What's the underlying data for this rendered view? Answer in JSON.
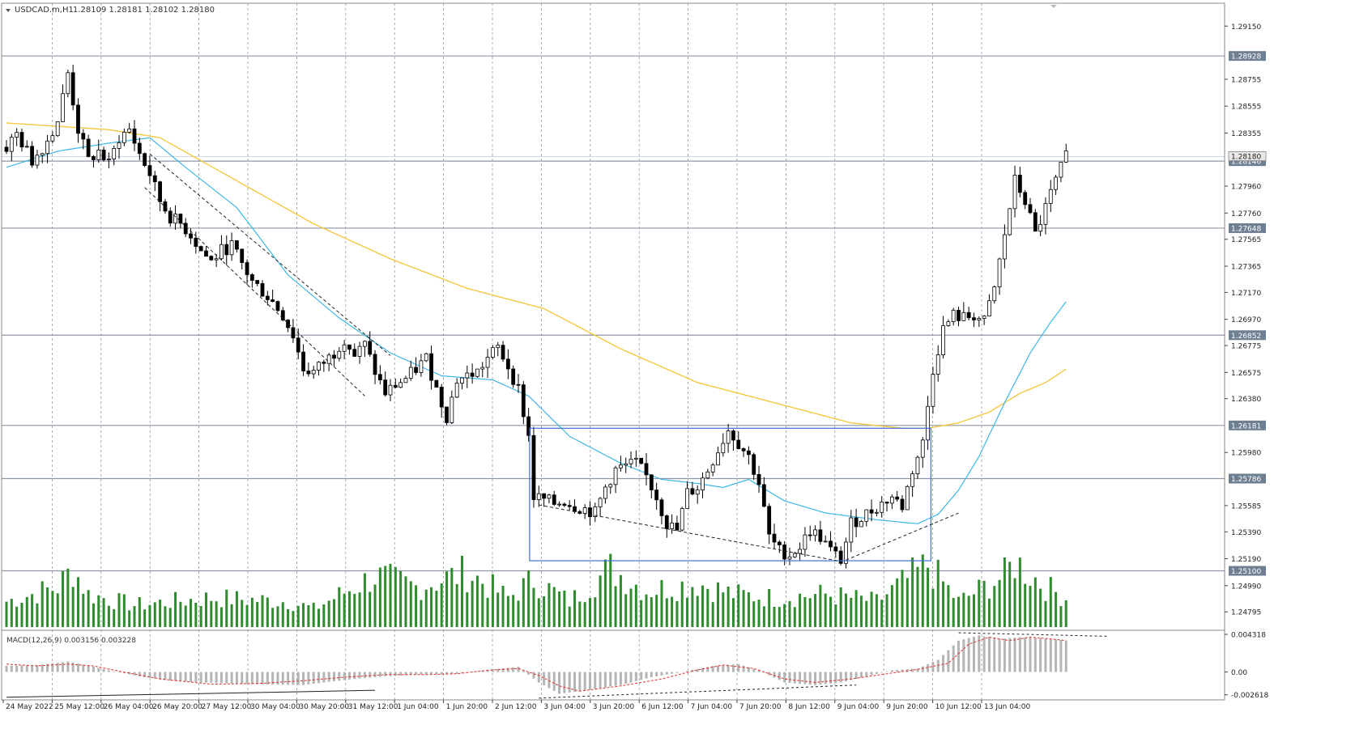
{
  "header": {
    "symbol": "USDCAD.m,H1",
    "ohlc": "1.28109 1.28181 1.28102 1.28180"
  },
  "colors": {
    "candle": "#000000",
    "grid": "#999999",
    "level": "#8c97a6",
    "ma_fast": "#3fb7e6",
    "ma_slow": "#f5c842",
    "volume": "#2e8b2e",
    "macd_hist": "#b5b5b5",
    "macd_signal": "#e03030",
    "range_box": "#3d6fd8",
    "price_label_bg": "#6f7f92"
  },
  "chart_data": {
    "type": "candlestick",
    "timeframe": "H1",
    "x_tick_labels": [
      "24 May 2022",
      "25 May 12:00",
      "26 May 04:00",
      "26 May 20:00",
      "27 May 12:00",
      "30 May 04:00",
      "30 May 20:00",
      "31 May 12:00",
      "1 Jun 04:00",
      "1 Jun 20:00",
      "2 Jun 12:00",
      "3 Jun 04:00",
      "3 Jun 20:00",
      "6 Jun 12:00",
      "7 Jun 04:00",
      "7 Jun 20:00",
      "8 Jun 12:00",
      "9 Jun 04:00",
      "9 Jun 20:00",
      "10 Jun 12:00",
      "13 Jun 04:00"
    ],
    "y_tick_labels": [
      "1.29150",
      "1.28755",
      "1.28555",
      "1.28355",
      "1.27960",
      "1.27760",
      "1.27565",
      "1.27365",
      "1.27170",
      "1.26970",
      "1.26775",
      "1.26575",
      "1.26380",
      "1.25980",
      "1.25585",
      "1.25390",
      "1.25190",
      "1.24990",
      "1.24795"
    ],
    "ylim": [
      1.2467,
      1.2932
    ],
    "horizontal_levels": [
      "1.28928",
      "1.28146",
      "1.27648",
      "1.26852",
      "1.26181",
      "1.25786",
      "1.25100"
    ],
    "current_price_label": "1.28180",
    "range_box": {
      "x_from": 102.2,
      "x_to": 180.6,
      "y_from": 1.25175,
      "y_to": 1.2616
    },
    "candle_keypoints": [
      [
        0,
        1.2825
      ],
      [
        2,
        1.2835
      ],
      [
        5,
        1.2815
      ],
      [
        8,
        1.283
      ],
      [
        10,
        1.2845
      ],
      [
        12,
        1.288
      ],
      [
        14,
        1.2838
      ],
      [
        16,
        1.2815
      ],
      [
        18,
        1.2822
      ],
      [
        20,
        1.2812
      ],
      [
        22,
        1.2832
      ],
      [
        24,
        1.2838
      ],
      [
        26,
        1.282
      ],
      [
        28,
        1.2805
      ],
      [
        30,
        1.2785
      ],
      [
        32,
        1.2773
      ],
      [
        34,
        1.2768
      ],
      [
        36,
        1.276
      ],
      [
        38,
        1.2748
      ],
      [
        40,
        1.274
      ],
      [
        42,
        1.2748
      ],
      [
        44,
        1.2752
      ],
      [
        46,
        1.2738
      ],
      [
        48,
        1.2725
      ],
      [
        50,
        1.2718
      ],
      [
        52,
        1.271
      ],
      [
        54,
        1.27
      ],
      [
        56,
        1.2685
      ],
      [
        58,
        1.266
      ],
      [
        60,
        1.2658
      ],
      [
        62,
        1.2665
      ],
      [
        64,
        1.2672
      ],
      [
        66,
        1.2683
      ],
      [
        68,
        1.267
      ],
      [
        70,
        1.2678
      ],
      [
        72,
        1.2658
      ],
      [
        74,
        1.2642
      ],
      [
        76,
        1.2648
      ],
      [
        78,
        1.2653
      ],
      [
        80,
        1.266
      ],
      [
        82,
        1.2668
      ],
      [
        84,
        1.2645
      ],
      [
        86,
        1.2625
      ],
      [
        88,
        1.2652
      ],
      [
        90,
        1.2655
      ],
      [
        92,
        1.2658
      ],
      [
        94,
        1.2668
      ],
      [
        96,
        1.2676
      ],
      [
        98,
        1.2662
      ],
      [
        100,
        1.2645
      ],
      [
        102,
        1.261
      ],
      [
        103,
        1.2565
      ],
      [
        105,
        1.2563
      ],
      [
        107,
        1.256
      ],
      [
        109,
        1.2562
      ],
      [
        111,
        1.2558
      ],
      [
        113,
        1.2556
      ],
      [
        115,
        1.2553
      ],
      [
        117,
        1.2572
      ],
      [
        119,
        1.2585
      ],
      [
        121,
        1.2588
      ],
      [
        123,
        1.259
      ],
      [
        125,
        1.258
      ],
      [
        127,
        1.2565
      ],
      [
        129,
        1.2545
      ],
      [
        131,
        1.254
      ],
      [
        133,
        1.2568
      ],
      [
        135,
        1.2572
      ],
      [
        137,
        1.2585
      ],
      [
        139,
        1.26
      ],
      [
        141,
        1.2615
      ],
      [
        143,
        1.2605
      ],
      [
        145,
        1.2595
      ],
      [
        147,
        1.2575
      ],
      [
        149,
        1.2535
      ],
      [
        151,
        1.2525
      ],
      [
        153,
        1.2522
      ],
      [
        155,
        1.2528
      ],
      [
        157,
        1.254
      ],
      [
        159,
        1.2535
      ],
      [
        161,
        1.2525
      ],
      [
        163,
        1.2518
      ],
      [
        165,
        1.2545
      ],
      [
        167,
        1.255
      ],
      [
        169,
        1.2555
      ],
      [
        171,
        1.256
      ],
      [
        173,
        1.2565
      ],
      [
        175,
        1.2558
      ],
      [
        177,
        1.2585
      ],
      [
        179,
        1.2605
      ],
      [
        181,
        1.266
      ],
      [
        183,
        1.269
      ],
      [
        185,
        1.27
      ],
      [
        187,
        1.2698
      ],
      [
        189,
        1.27
      ],
      [
        191,
        1.2695
      ],
      [
        193,
        1.272
      ],
      [
        195,
        1.276
      ],
      [
        197,
        1.28
      ],
      [
        199,
        1.2785
      ],
      [
        201,
        1.276
      ],
      [
        203,
        1.278
      ],
      [
        205,
        1.28
      ],
      [
        207,
        1.2818
      ]
    ],
    "volume_keypoints": [
      [
        0,
        0.35
      ],
      [
        10,
        0.55
      ],
      [
        13,
        0.8
      ],
      [
        16,
        0.45
      ],
      [
        25,
        0.3
      ],
      [
        40,
        0.4
      ],
      [
        55,
        0.35
      ],
      [
        60,
        0.25
      ],
      [
        72,
        0.7
      ],
      [
        80,
        0.55
      ],
      [
        90,
        0.75
      ],
      [
        98,
        0.4
      ],
      [
        103,
        0.65
      ],
      [
        110,
        0.35
      ],
      [
        118,
        0.8
      ],
      [
        125,
        0.5
      ],
      [
        135,
        0.6
      ],
      [
        142,
        0.45
      ],
      [
        150,
        0.4
      ],
      [
        160,
        0.45
      ],
      [
        170,
        0.35
      ],
      [
        180,
        0.85
      ],
      [
        186,
        0.35
      ],
      [
        195,
        0.7
      ],
      [
        197,
        0.9
      ],
      [
        203,
        0.55
      ],
      [
        207,
        0.4
      ]
    ],
    "ma_fast_keypoints": [
      [
        0,
        1.281
      ],
      [
        10,
        1.2822
      ],
      [
        20,
        1.2828
      ],
      [
        28,
        1.2832
      ],
      [
        35,
        1.281
      ],
      [
        45,
        1.278
      ],
      [
        55,
        1.273
      ],
      [
        65,
        1.2698
      ],
      [
        75,
        1.2672
      ],
      [
        85,
        1.2655
      ],
      [
        95,
        1.2652
      ],
      [
        102,
        1.264
      ],
      [
        110,
        1.261
      ],
      [
        120,
        1.259
      ],
      [
        128,
        1.2578
      ],
      [
        135,
        1.2575
      ],
      [
        140,
        1.2572
      ],
      [
        145,
        1.2578
      ],
      [
        152,
        1.2562
      ],
      [
        160,
        1.2553
      ],
      [
        170,
        1.2548
      ],
      [
        178,
        1.2545
      ],
      [
        182,
        1.2552
      ],
      [
        186,
        1.257
      ],
      [
        190,
        1.2595
      ],
      [
        195,
        1.2635
      ],
      [
        200,
        1.2672
      ],
      [
        204,
        1.2695
      ],
      [
        207,
        1.271
      ]
    ],
    "ma_slow_keypoints": [
      [
        0,
        1.2843
      ],
      [
        20,
        1.2838
      ],
      [
        30,
        1.2832
      ],
      [
        45,
        1.28
      ],
      [
        60,
        1.2768
      ],
      [
        75,
        1.2742
      ],
      [
        90,
        1.272
      ],
      [
        105,
        1.2705
      ],
      [
        120,
        1.2675
      ],
      [
        135,
        1.265
      ],
      [
        150,
        1.2635
      ],
      [
        165,
        1.262
      ],
      [
        175,
        1.2616
      ],
      [
        180,
        1.2616
      ],
      [
        186,
        1.262
      ],
      [
        192,
        1.2628
      ],
      [
        198,
        1.2642
      ],
      [
        203,
        1.265
      ],
      [
        207,
        1.266
      ]
    ],
    "macd": {
      "label": "MACD(12,26,9) 0.003156 0.003228",
      "ylim": [
        -0.0032,
        0.0046
      ],
      "y_tick_labels": [
        "0.004318",
        "0.00",
        "-0.002618"
      ],
      "hist_keypoints": [
        [
          0,
          0.0007
        ],
        [
          6,
          0.0008
        ],
        [
          12,
          0.0012
        ],
        [
          17,
          0.0006
        ],
        [
          20,
          0.0002
        ],
        [
          26,
          -0.0005
        ],
        [
          32,
          -0.001
        ],
        [
          38,
          -0.0012
        ],
        [
          48,
          -0.0014
        ],
        [
          58,
          -0.0015
        ],
        [
          62,
          -0.0012
        ],
        [
          68,
          -0.0008
        ],
        [
          74,
          -0.0005
        ],
        [
          80,
          -0.0003
        ],
        [
          88,
          -0.0002
        ],
        [
          95,
          0.0003
        ],
        [
          100,
          0.0006
        ],
        [
          104,
          -0.0012
        ],
        [
          108,
          -0.0025
        ],
        [
          112,
          -0.0022
        ],
        [
          120,
          -0.0015
        ],
        [
          126,
          -0.0006
        ],
        [
          132,
          0.0
        ],
        [
          138,
          0.0007
        ],
        [
          143,
          0.0009
        ],
        [
          147,
          0.0002
        ],
        [
          152,
          -0.0012
        ],
        [
          158,
          -0.0015
        ],
        [
          163,
          -0.0012
        ],
        [
          168,
          -0.0005
        ],
        [
          173,
          0.0002
        ],
        [
          178,
          0.0004
        ],
        [
          182,
          0.0014
        ],
        [
          186,
          0.0036
        ],
        [
          190,
          0.0042
        ],
        [
          194,
          0.0038
        ],
        [
          198,
          0.004
        ],
        [
          202,
          0.0039
        ],
        [
          207,
          0.0036
        ]
      ],
      "signal_keypoints": [
        [
          0,
          0.0009
        ],
        [
          6,
          0.0007
        ],
        [
          12,
          0.0009
        ],
        [
          17,
          0.0007
        ],
        [
          22,
          0.0001
        ],
        [
          30,
          -0.0008
        ],
        [
          40,
          -0.0014
        ],
        [
          50,
          -0.0013
        ],
        [
          58,
          -0.001
        ],
        [
          66,
          -0.0006
        ],
        [
          74,
          -0.0003
        ],
        [
          82,
          -0.0003
        ],
        [
          88,
          -0.0002
        ],
        [
          94,
          0.0002
        ],
        [
          100,
          0.0004
        ],
        [
          104,
          -0.0004
        ],
        [
          108,
          -0.0016
        ],
        [
          112,
          -0.0022
        ],
        [
          120,
          -0.0016
        ],
        [
          128,
          -0.0008
        ],
        [
          134,
          0.0001
        ],
        [
          140,
          0.0008
        ],
        [
          146,
          0.0004
        ],
        [
          152,
          -0.0008
        ],
        [
          158,
          -0.0012
        ],
        [
          165,
          -0.0008
        ],
        [
          172,
          -0.0002
        ],
        [
          178,
          0.0003
        ],
        [
          184,
          0.001
        ],
        [
          188,
          0.0032
        ],
        [
          192,
          0.004
        ],
        [
          196,
          0.0036
        ],
        [
          200,
          0.004
        ],
        [
          204,
          0.0038
        ],
        [
          207,
          0.0036
        ]
      ]
    }
  }
}
